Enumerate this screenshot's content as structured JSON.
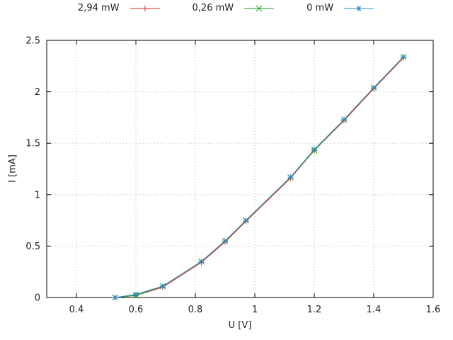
{
  "chart_data": {
    "type": "line",
    "title": "",
    "xlabel": "U [V]",
    "ylabel": "I [mA]",
    "xlim": [
      0.3,
      1.6
    ],
    "ylim": [
      0,
      2.5
    ],
    "x_ticks": [
      0.4,
      0.6,
      0.8,
      1,
      1.2,
      1.4,
      1.6
    ],
    "y_ticks": [
      0,
      0.5,
      1,
      1.5,
      2,
      2.5
    ],
    "grid": true,
    "legend_position": "top-center",
    "series": [
      {
        "name": "2,94 mW",
        "color": "#e0241b",
        "marker": "plus",
        "x": [
          0.53,
          0.6,
          0.69,
          0.82,
          0.9,
          0.97,
          1.12,
          1.2,
          1.3,
          1.4,
          1.5
        ],
        "y": [
          0,
          0.02,
          0.1,
          0.34,
          0.54,
          0.74,
          1.16,
          1.43,
          1.72,
          2.03,
          2.33
        ]
      },
      {
        "name": "0,26 mW",
        "color": "#20a120",
        "marker": "cross",
        "x": [
          0.53,
          0.6,
          0.69,
          0.82,
          0.9,
          0.97,
          1.12,
          1.2,
          1.3,
          1.4,
          1.5
        ],
        "y": [
          0,
          0.02,
          0.11,
          0.35,
          0.55,
          0.75,
          1.17,
          1.43,
          1.73,
          2.04,
          2.34
        ]
      },
      {
        "name": "0 mW",
        "color": "#2e8bc0",
        "marker": "asterisk",
        "x": [
          0.53,
          0.6,
          0.69,
          0.82,
          0.9,
          0.97,
          1.12,
          1.2,
          1.3,
          1.4,
          1.5
        ],
        "y": [
          0,
          0.03,
          0.11,
          0.35,
          0.55,
          0.75,
          1.17,
          1.44,
          1.73,
          2.04,
          2.34
        ]
      }
    ]
  }
}
